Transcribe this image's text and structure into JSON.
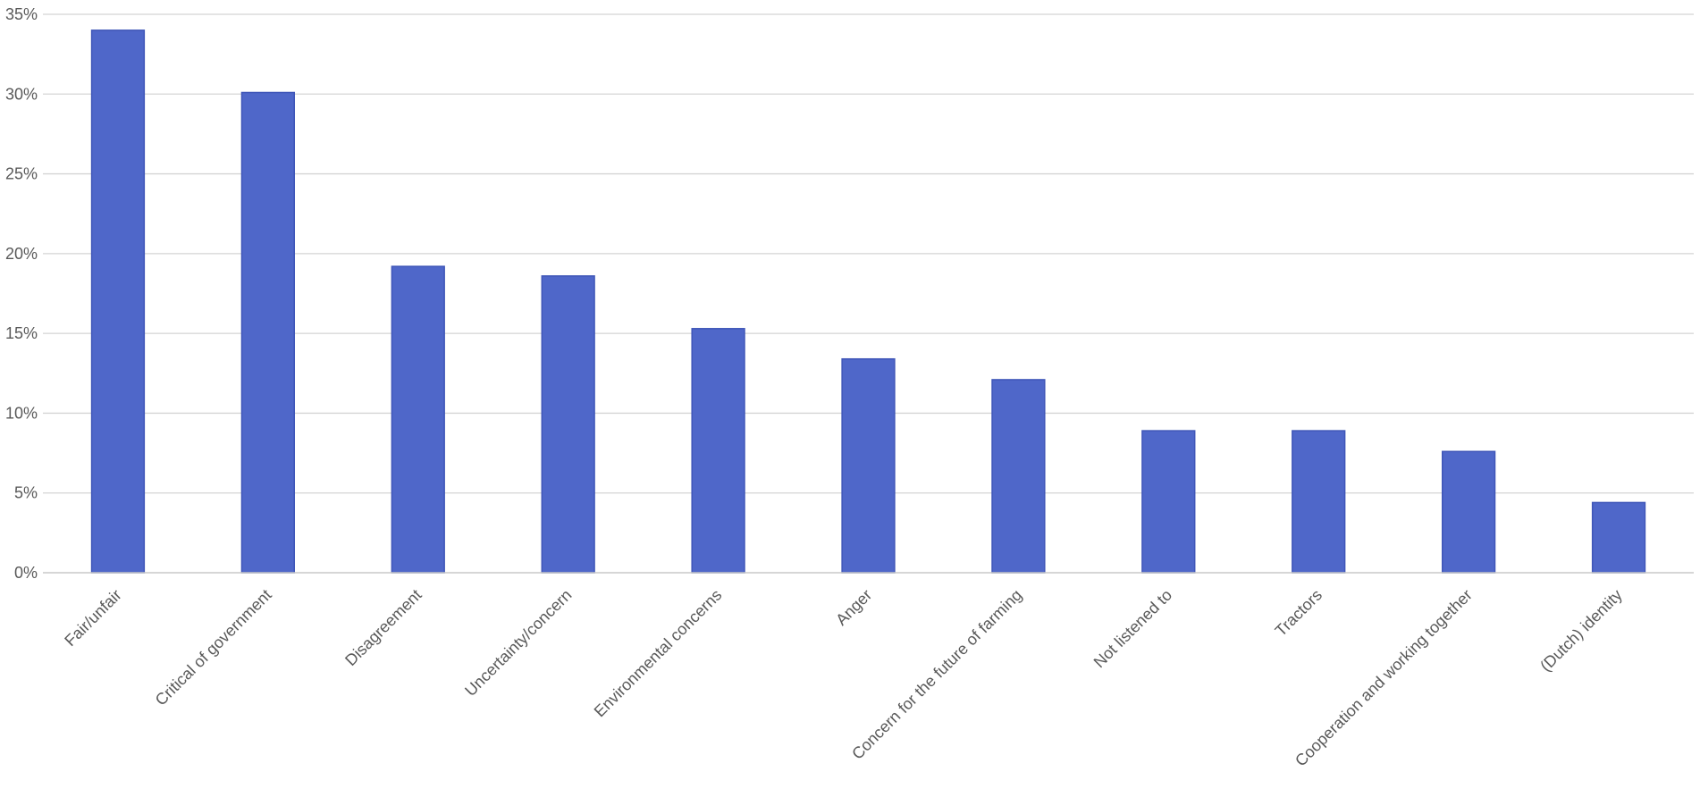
{
  "chart_data": {
    "type": "bar",
    "title": "",
    "xlabel": "",
    "ylabel": "",
    "ylim": [
      0,
      35
    ],
    "y_ticks": [
      0,
      5,
      10,
      15,
      20,
      25,
      30,
      35
    ],
    "y_tick_labels": [
      "0%",
      "5%",
      "10%",
      "15%",
      "20%",
      "25%",
      "30%",
      "35%"
    ],
    "grid": true,
    "legend": "none",
    "categories": [
      "Fair/unfair",
      "Critical of government",
      "Disagreement",
      "Uncertainty/concern",
      "Environmental concerns",
      "Anger",
      "Concern for the future of farming",
      "Not listened to",
      "Tractors",
      "Cooperation and working together",
      "(Dutch) identity"
    ],
    "values": [
      34,
      30.1,
      19.2,
      18.6,
      15.3,
      13.4,
      12.1,
      8.9,
      8.9,
      7.6,
      4.4
    ],
    "colors": {
      "bar_fill": "#4f67c9",
      "bar_stroke": "#3f56b8",
      "gridline": "#d4d4d4",
      "text": "#595959"
    }
  }
}
